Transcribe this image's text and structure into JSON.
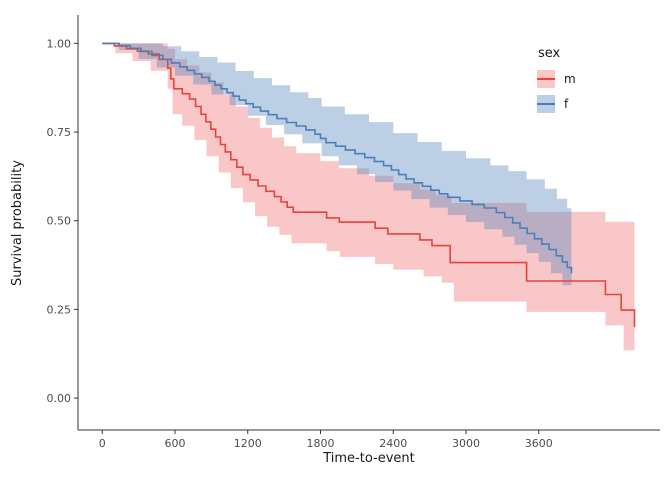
{
  "chart_data": {
    "type": "line",
    "subtype": "kaplan-meier-step-with-confidence-bands",
    "title": "",
    "xlabel": "Time-to-event",
    "ylabel": "Survival probability",
    "legend_title": "sex",
    "legend_position": "right",
    "grid": false,
    "axis_color": "#333333",
    "tick_label_color": "#4d4d4d",
    "xlim": [
      -200,
      4600
    ],
    "ylim": [
      -0.09,
      1.08
    ],
    "xticks": [
      0,
      600,
      1200,
      1800,
      2400,
      3000,
      3600
    ],
    "ytick_values": [
      0,
      0.25,
      0.5,
      0.75,
      1.0
    ],
    "ytick_labels": [
      "0.00",
      "0.25",
      "0.50",
      "0.75",
      "1.00"
    ],
    "series": [
      {
        "name": "m",
        "color": "#E8433C",
        "band_color": "rgba(235,80,80,0.32)",
        "steps": [
          [
            0,
            1.0
          ],
          [
            100,
            0.993
          ],
          [
            200,
            0.985
          ],
          [
            290,
            0.978
          ],
          [
            380,
            0.97
          ],
          [
            470,
            0.955
          ],
          [
            540,
            0.93
          ],
          [
            565,
            0.9
          ],
          [
            590,
            0.872
          ],
          [
            660,
            0.858
          ],
          [
            720,
            0.843
          ],
          [
            770,
            0.822
          ],
          [
            815,
            0.8
          ],
          [
            855,
            0.779
          ],
          [
            895,
            0.758
          ],
          [
            935,
            0.736
          ],
          [
            975,
            0.715
          ],
          [
            1015,
            0.694
          ],
          [
            1060,
            0.672
          ],
          [
            1110,
            0.651
          ],
          [
            1160,
            0.63
          ],
          [
            1220,
            0.615
          ],
          [
            1285,
            0.598
          ],
          [
            1350,
            0.583
          ],
          [
            1420,
            0.568
          ],
          [
            1475,
            0.553
          ],
          [
            1525,
            0.538
          ],
          [
            1575,
            0.524
          ],
          [
            1850,
            0.508
          ],
          [
            1955,
            0.496
          ],
          [
            2250,
            0.479
          ],
          [
            2355,
            0.463
          ],
          [
            2620,
            0.446
          ],
          [
            2720,
            0.43
          ],
          [
            2870,
            0.382
          ],
          [
            3500,
            0.33
          ],
          [
            4150,
            0.292
          ],
          [
            4280,
            0.248
          ],
          [
            4390,
            0.2
          ]
        ],
        "ci_upper": [
          [
            0,
            1.0
          ],
          [
            420,
            1.0
          ],
          [
            540,
            0.985
          ],
          [
            600,
            0.955
          ],
          [
            700,
            0.938
          ],
          [
            800,
            0.918
          ],
          [
            900,
            0.89
          ],
          [
            1000,
            0.855
          ],
          [
            1100,
            0.822
          ],
          [
            1200,
            0.79
          ],
          [
            1300,
            0.762
          ],
          [
            1400,
            0.735
          ],
          [
            1500,
            0.71
          ],
          [
            1600,
            0.69
          ],
          [
            1800,
            0.668
          ],
          [
            1950,
            0.648
          ],
          [
            2200,
            0.627
          ],
          [
            2400,
            0.606
          ],
          [
            2620,
            0.588
          ],
          [
            2750,
            0.572
          ],
          [
            2880,
            0.55
          ],
          [
            3500,
            0.525
          ],
          [
            4150,
            0.497
          ],
          [
            4390,
            0.49
          ]
        ],
        "ci_lower": [
          [
            0,
            1.0
          ],
          [
            110,
            0.972
          ],
          [
            250,
            0.95
          ],
          [
            400,
            0.923
          ],
          [
            540,
            0.872
          ],
          [
            580,
            0.8
          ],
          [
            660,
            0.768
          ],
          [
            760,
            0.728
          ],
          [
            860,
            0.682
          ],
          [
            960,
            0.636
          ],
          [
            1060,
            0.592
          ],
          [
            1160,
            0.552
          ],
          [
            1260,
            0.513
          ],
          [
            1360,
            0.483
          ],
          [
            1460,
            0.46
          ],
          [
            1560,
            0.436
          ],
          [
            1850,
            0.414
          ],
          [
            1960,
            0.398
          ],
          [
            2250,
            0.378
          ],
          [
            2400,
            0.362
          ],
          [
            2650,
            0.343
          ],
          [
            2800,
            0.325
          ],
          [
            2900,
            0.272
          ],
          [
            3500,
            0.243
          ],
          [
            4150,
            0.205
          ],
          [
            4300,
            0.135
          ],
          [
            4390,
            0.1
          ]
        ]
      },
      {
        "name": "f",
        "color": "#4C7FB8",
        "band_color": "rgba(90,135,190,0.40)",
        "steps": [
          [
            0,
            1.0
          ],
          [
            140,
            0.994
          ],
          [
            230,
            0.986
          ],
          [
            320,
            0.977
          ],
          [
            410,
            0.966
          ],
          [
            500,
            0.955
          ],
          [
            570,
            0.945
          ],
          [
            640,
            0.934
          ],
          [
            700,
            0.924
          ],
          [
            760,
            0.914
          ],
          [
            820,
            0.904
          ],
          [
            880,
            0.893
          ],
          [
            930,
            0.882
          ],
          [
            980,
            0.872
          ],
          [
            1030,
            0.861
          ],
          [
            1080,
            0.851
          ],
          [
            1130,
            0.84
          ],
          [
            1185,
            0.83
          ],
          [
            1245,
            0.82
          ],
          [
            1305,
            0.809
          ],
          [
            1370,
            0.799
          ],
          [
            1440,
            0.788
          ],
          [
            1520,
            0.777
          ],
          [
            1600,
            0.767
          ],
          [
            1680,
            0.756
          ],
          [
            1755,
            0.744
          ],
          [
            1800,
            0.732
          ],
          [
            1845,
            0.72
          ],
          [
            1925,
            0.71
          ],
          [
            2005,
            0.699
          ],
          [
            2085,
            0.689
          ],
          [
            2165,
            0.678
          ],
          [
            2245,
            0.667
          ],
          [
            2320,
            0.655
          ],
          [
            2385,
            0.643
          ],
          [
            2445,
            0.63
          ],
          [
            2505,
            0.618
          ],
          [
            2572,
            0.607
          ],
          [
            2640,
            0.597
          ],
          [
            2710,
            0.586
          ],
          [
            2780,
            0.576
          ],
          [
            2850,
            0.566
          ],
          [
            2950,
            0.556
          ],
          [
            3050,
            0.546
          ],
          [
            3150,
            0.536
          ],
          [
            3250,
            0.523
          ],
          [
            3320,
            0.509
          ],
          [
            3385,
            0.494
          ],
          [
            3445,
            0.479
          ],
          [
            3505,
            0.464
          ],
          [
            3565,
            0.449
          ],
          [
            3625,
            0.434
          ],
          [
            3685,
            0.419
          ],
          [
            3745,
            0.401
          ],
          [
            3795,
            0.384
          ],
          [
            3835,
            0.368
          ],
          [
            3870,
            0.352
          ]
        ],
        "ci_upper": [
          [
            0,
            1.0
          ],
          [
            320,
            1.0
          ],
          [
            500,
            0.992
          ],
          [
            650,
            0.978
          ],
          [
            800,
            0.962
          ],
          [
            950,
            0.946
          ],
          [
            1100,
            0.922
          ],
          [
            1250,
            0.902
          ],
          [
            1400,
            0.882
          ],
          [
            1550,
            0.862
          ],
          [
            1700,
            0.846
          ],
          [
            1810,
            0.822
          ],
          [
            2000,
            0.8
          ],
          [
            2200,
            0.778
          ],
          [
            2400,
            0.747
          ],
          [
            2600,
            0.722
          ],
          [
            2800,
            0.697
          ],
          [
            3000,
            0.676
          ],
          [
            3200,
            0.656
          ],
          [
            3350,
            0.64
          ],
          [
            3500,
            0.617
          ],
          [
            3650,
            0.59
          ],
          [
            3750,
            0.562
          ],
          [
            3835,
            0.535
          ],
          [
            3870,
            0.52
          ]
        ],
        "ci_lower": [
          [
            0,
            1.0
          ],
          [
            140,
            0.981
          ],
          [
            300,
            0.956
          ],
          [
            450,
            0.932
          ],
          [
            600,
            0.909
          ],
          [
            750,
            0.884
          ],
          [
            900,
            0.856
          ],
          [
            1050,
            0.826
          ],
          [
            1200,
            0.796
          ],
          [
            1350,
            0.77
          ],
          [
            1500,
            0.744
          ],
          [
            1650,
            0.718
          ],
          [
            1810,
            0.682
          ],
          [
            1950,
            0.656
          ],
          [
            2100,
            0.631
          ],
          [
            2250,
            0.609
          ],
          [
            2400,
            0.585
          ],
          [
            2550,
            0.561
          ],
          [
            2700,
            0.537
          ],
          [
            2850,
            0.516
          ],
          [
            3000,
            0.496
          ],
          [
            3150,
            0.476
          ],
          [
            3300,
            0.455
          ],
          [
            3400,
            0.432
          ],
          [
            3500,
            0.409
          ],
          [
            3600,
            0.384
          ],
          [
            3700,
            0.352
          ],
          [
            3795,
            0.318
          ],
          [
            3870,
            0.268
          ]
        ]
      }
    ]
  }
}
